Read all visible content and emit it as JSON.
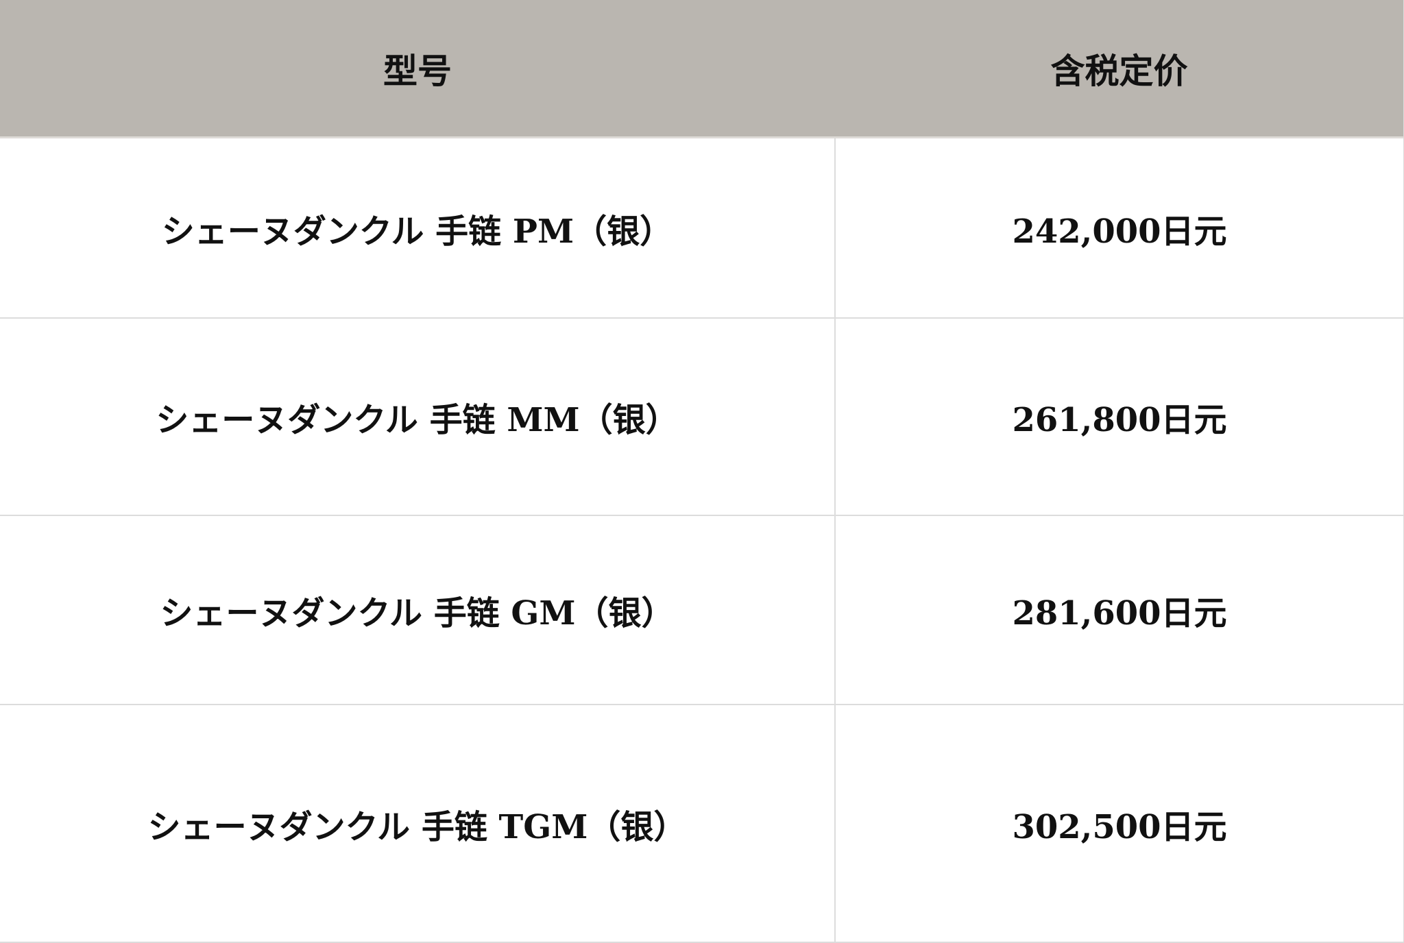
{
  "table": {
    "headers": [
      "型号",
      "含税定价"
    ],
    "rows": [
      {
        "model": "シェーヌダンクル 手链 PM（银）",
        "price": "242,000日元"
      },
      {
        "model": "シェーヌダンクル 手链 MM（银）",
        "price": "261,800日元"
      },
      {
        "model": "シェーヌダンクル 手链 GM（银）",
        "price": "281,600日元"
      },
      {
        "model": "シェーヌダンクル 手链 TGM（银）",
        "price": "302,500日元"
      }
    ]
  },
  "colors": {
    "header_bg": "#bab6b0",
    "border": "#dcdcdc"
  }
}
